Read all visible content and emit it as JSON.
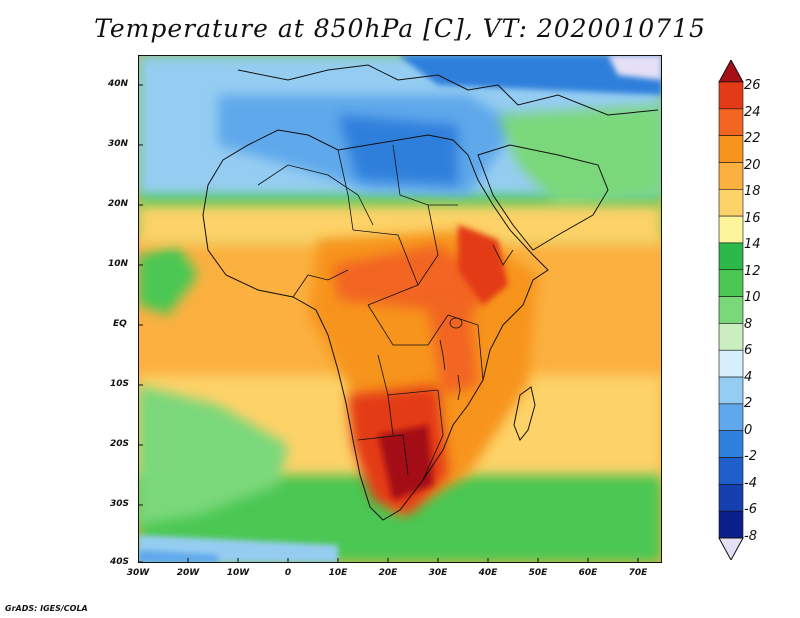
{
  "title": "Temperature at 850hPa [C], VT: 2020010715",
  "credit": "GrADS: IGES/COLA",
  "map": {
    "variable": "Temperature",
    "level": "850hPa",
    "units": "C",
    "valid_time": "2020010715",
    "region": "Africa",
    "lon_range": [
      -30,
      75
    ],
    "lat_range": [
      -40,
      45
    ]
  },
  "lat_labels": [
    "40N",
    "30N",
    "20N",
    "10N",
    "EQ",
    "10S",
    "20S",
    "30S",
    "40S"
  ],
  "lon_labels": [
    "30W",
    "20W",
    "10W",
    "0",
    "10E",
    "20E",
    "30E",
    "40E",
    "50E",
    "60E",
    "70E"
  ],
  "colorbar": {
    "labels": [
      "26",
      "24",
      "22",
      "20",
      "18",
      "16",
      "14",
      "12",
      "10",
      "8",
      "6",
      "4",
      "2",
      "0",
      "-2",
      "-4",
      "-6",
      "-8"
    ],
    "colors": [
      "#a50f15",
      "#e33b17",
      "#f26522",
      "#f7941d",
      "#fbb040",
      "#fdd268",
      "#fef49c",
      "#2db84a",
      "#4cc752",
      "#7ad87a",
      "#cbeec0",
      "#d6f0fb",
      "#95cdf2",
      "#5ea8eb",
      "#2f7fdc",
      "#1e5fcc",
      "#1640b0",
      "#0b1f8a",
      "#e6e0f6"
    ]
  }
}
